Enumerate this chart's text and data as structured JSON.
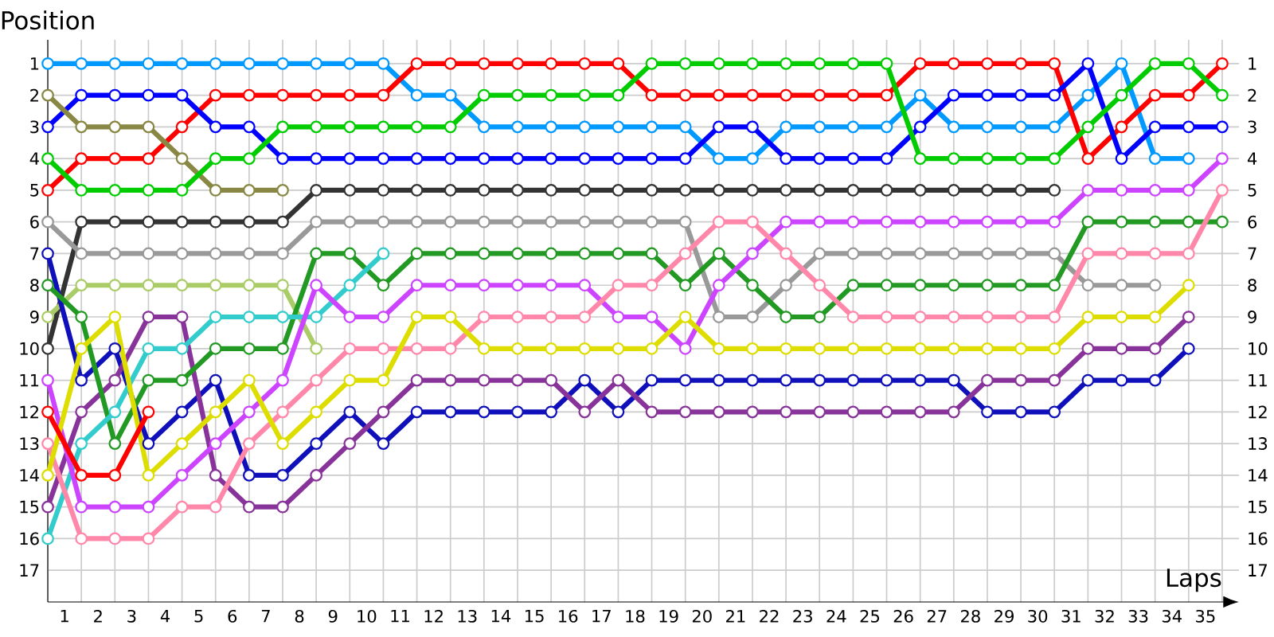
{
  "chart_data": {
    "type": "line",
    "xlabel": "Laps",
    "ylabel": "Position",
    "x": [
      0,
      1,
      2,
      3,
      4,
      5,
      6,
      7,
      8,
      9,
      10,
      11,
      12,
      13,
      14,
      15,
      16,
      17,
      18,
      19,
      20,
      21,
      22,
      23,
      24,
      25,
      26,
      27,
      28,
      29,
      30,
      31,
      32,
      33,
      34,
      35
    ],
    "series": [
      {
        "color": "#0099ff",
        "values": [
          1,
          1,
          1,
          1,
          1,
          1,
          1,
          1,
          1,
          1,
          1,
          2,
          2,
          3,
          3,
          3,
          3,
          3,
          3,
          3,
          4,
          4,
          3,
          3,
          3,
          3,
          2,
          3,
          3,
          3,
          3,
          2,
          1,
          4,
          4,
          null
        ]
      },
      {
        "color": "#ff0000",
        "values": [
          5,
          4,
          4,
          4,
          3,
          2,
          2,
          2,
          2,
          2,
          2,
          1,
          1,
          1,
          1,
          1,
          1,
          1,
          2,
          2,
          2,
          2,
          2,
          2,
          2,
          2,
          1,
          1,
          1,
          1,
          1,
          4,
          3,
          2,
          2,
          1
        ]
      },
      {
        "color": "#0000ff",
        "values": [
          3,
          2,
          2,
          2,
          2,
          3,
          3,
          4,
          4,
          4,
          4,
          4,
          4,
          4,
          4,
          4,
          4,
          4,
          4,
          4,
          3,
          3,
          4,
          4,
          4,
          4,
          3,
          2,
          2,
          2,
          2,
          1,
          4,
          3,
          3,
          3
        ]
      },
      {
        "color": "#888844",
        "values": [
          2,
          3,
          3,
          3,
          4,
          5,
          5,
          5,
          null,
          null,
          null,
          null,
          null,
          null,
          null,
          null,
          null,
          null,
          null,
          null,
          null,
          null,
          null,
          null,
          null,
          null,
          null,
          null,
          null,
          null,
          null,
          null,
          null,
          null,
          null,
          null
        ]
      },
      {
        "color": "#00cc00",
        "values": [
          4,
          5,
          5,
          5,
          5,
          4,
          4,
          3,
          3,
          3,
          3,
          3,
          3,
          2,
          2,
          2,
          2,
          2,
          1,
          1,
          1,
          1,
          1,
          1,
          1,
          1,
          4,
          4,
          4,
          4,
          4,
          3,
          2,
          1,
          1,
          2
        ]
      },
      {
        "color": "#333333",
        "values": [
          10,
          6,
          6,
          6,
          6,
          6,
          6,
          6,
          5,
          5,
          5,
          5,
          5,
          5,
          5,
          5,
          5,
          5,
          5,
          5,
          5,
          5,
          5,
          5,
          5,
          5,
          5,
          5,
          5,
          5,
          5,
          null,
          null,
          null,
          null,
          null
        ]
      },
      {
        "color": "#999999",
        "values": [
          6,
          7,
          7,
          7,
          7,
          7,
          7,
          7,
          6,
          6,
          6,
          6,
          6,
          6,
          6,
          6,
          6,
          6,
          6,
          6,
          9,
          9,
          8,
          7,
          7,
          7,
          7,
          7,
          7,
          7,
          7,
          8,
          8,
          8,
          null,
          null
        ]
      },
      {
        "color": "#aacc66",
        "values": [
          9,
          8,
          8,
          8,
          8,
          8,
          8,
          8,
          10,
          null,
          null,
          null,
          null,
          null,
          null,
          null,
          null,
          null,
          null,
          null,
          null,
          null,
          null,
          null,
          null,
          null,
          null,
          null,
          null,
          null,
          null,
          null,
          null,
          null,
          null,
          null
        ]
      },
      {
        "color": "#1010bb",
        "values": [
          7,
          11,
          10,
          13,
          12,
          11,
          14,
          14,
          13,
          12,
          13,
          12,
          12,
          12,
          12,
          12,
          11,
          12,
          11,
          11,
          11,
          11,
          11,
          11,
          11,
          11,
          11,
          11,
          12,
          12,
          12,
          11,
          11,
          11,
          10,
          null
        ]
      },
      {
        "color": "#883399",
        "values": [
          15,
          12,
          11,
          9,
          9,
          14,
          15,
          15,
          14,
          13,
          12,
          11,
          11,
          11,
          11,
          11,
          12,
          11,
          12,
          12,
          12,
          12,
          12,
          12,
          12,
          12,
          12,
          12,
          11,
          11,
          11,
          10,
          10,
          10,
          9,
          null
        ]
      },
      {
        "color": "#229922",
        "values": [
          8,
          9,
          13,
          11,
          11,
          10,
          10,
          10,
          7,
          7,
          8,
          7,
          7,
          7,
          7,
          7,
          7,
          7,
          7,
          8,
          7,
          8,
          9,
          9,
          8,
          8,
          8,
          8,
          8,
          8,
          8,
          6,
          6,
          6,
          6,
          6
        ]
      },
      {
        "color": "#33cccc",
        "values": [
          16,
          13,
          12,
          10,
          10,
          9,
          9,
          9,
          9,
          8,
          7,
          null,
          null,
          null,
          null,
          null,
          null,
          null,
          null,
          null,
          null,
          null,
          null,
          null,
          null,
          null,
          null,
          null,
          null,
          null,
          null,
          null,
          null,
          null,
          null,
          null
        ]
      },
      {
        "color": "#cc44ff",
        "values": [
          11,
          15,
          15,
          15,
          14,
          13,
          12,
          11,
          8,
          9,
          9,
          8,
          8,
          8,
          8,
          8,
          8,
          9,
          9,
          10,
          8,
          7,
          6,
          6,
          6,
          6,
          6,
          6,
          6,
          6,
          6,
          5,
          5,
          5,
          5,
          4
        ]
      },
      {
        "color": "#ff88aa",
        "values": [
          13,
          16,
          16,
          16,
          15,
          15,
          13,
          12,
          11,
          10,
          10,
          10,
          10,
          9,
          9,
          9,
          9,
          8,
          8,
          7,
          6,
          6,
          7,
          8,
          9,
          9,
          9,
          9,
          9,
          9,
          9,
          7,
          7,
          7,
          7,
          5
        ]
      },
      {
        "color": "#dddd00",
        "values": [
          14,
          10,
          9,
          14,
          13,
          12,
          11,
          13,
          12,
          11,
          11,
          9,
          9,
          10,
          10,
          10,
          10,
          10,
          10,
          9,
          10,
          10,
          10,
          10,
          10,
          10,
          10,
          10,
          10,
          10,
          10,
          9,
          9,
          9,
          8,
          null
        ]
      },
      {
        "color": "#ff0000",
        "values": [
          12,
          14,
          14,
          12,
          null,
          null,
          null,
          null,
          null,
          null,
          null,
          null,
          null,
          null,
          null,
          null,
          null,
          null,
          null,
          null,
          null,
          null,
          null,
          null,
          null,
          null,
          null,
          null,
          null,
          null,
          null,
          null,
          null,
          null,
          null,
          null
        ]
      }
    ],
    "xlim": [
      0,
      35.5
    ],
    "xticks": [
      {
        "value": 0.5,
        "label": "1"
      },
      {
        "value": 1.5,
        "label": "2"
      },
      {
        "value": 2.5,
        "label": "3"
      },
      {
        "value": 3.5,
        "label": "4"
      },
      {
        "value": 4.5,
        "label": "5"
      },
      {
        "value": 5.5,
        "label": "6"
      },
      {
        "value": 6.5,
        "label": "7"
      },
      {
        "value": 7.5,
        "label": "8"
      },
      {
        "value": 8.5,
        "label": "9"
      },
      {
        "value": 9.5,
        "label": "10"
      },
      {
        "value": 10.5,
        "label": "11"
      },
      {
        "value": 11.5,
        "label": "12"
      },
      {
        "value": 12.5,
        "label": "13"
      },
      {
        "value": 13.5,
        "label": "14"
      },
      {
        "value": 14.5,
        "label": "15"
      },
      {
        "value": 15.5,
        "label": "16"
      },
      {
        "value": 16.5,
        "label": "17"
      },
      {
        "value": 17.5,
        "label": "18"
      },
      {
        "value": 18.5,
        "label": "19"
      },
      {
        "value": 19.5,
        "label": "20"
      },
      {
        "value": 20.5,
        "label": "21"
      },
      {
        "value": 21.5,
        "label": "22"
      },
      {
        "value": 22.5,
        "label": "23"
      },
      {
        "value": 23.5,
        "label": "24"
      },
      {
        "value": 24.5,
        "label": "25"
      },
      {
        "value": 25.5,
        "label": "26"
      },
      {
        "value": 26.5,
        "label": "27"
      },
      {
        "value": 27.5,
        "label": "28"
      },
      {
        "value": 28.5,
        "label": "29"
      },
      {
        "value": 29.5,
        "label": "30"
      },
      {
        "value": 30.5,
        "label": "31"
      },
      {
        "value": 31.5,
        "label": "32"
      },
      {
        "value": 32.5,
        "label": "33"
      },
      {
        "value": 33.5,
        "label": "34"
      },
      {
        "value": 34.5,
        "label": "35"
      }
    ],
    "ylim": [
      18,
      0.25
    ],
    "yticks": [
      1,
      2,
      3,
      4,
      5,
      6,
      7,
      8,
      9,
      10,
      11,
      12,
      13,
      14,
      15,
      16,
      17
    ],
    "y2lim": [
      18,
      0.25
    ],
    "y2ticks": [
      1,
      2,
      3,
      4,
      5,
      6,
      7,
      8,
      9,
      10,
      11,
      12,
      13,
      14,
      15,
      16,
      17
    ],
    "grid": true,
    "marker": "circle",
    "line_style": "solid"
  }
}
